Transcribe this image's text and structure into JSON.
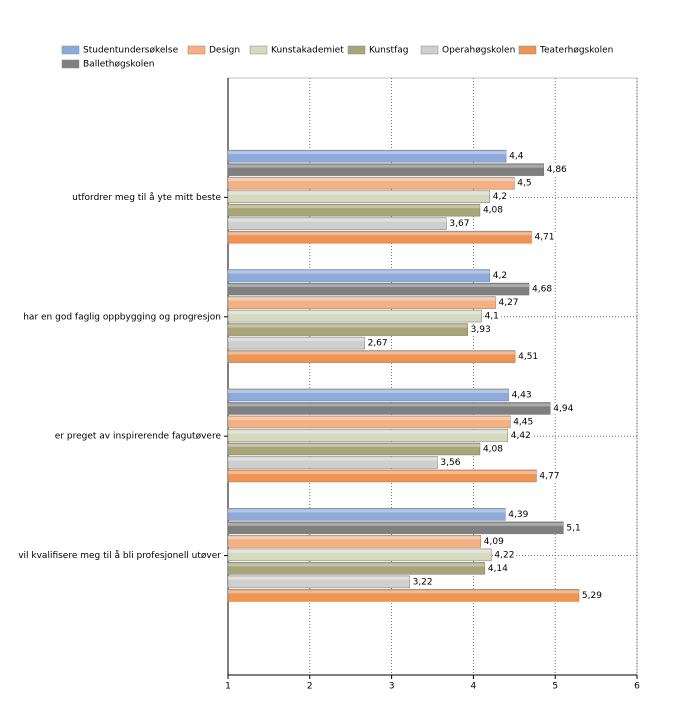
{
  "chart_data": {
    "type": "hbar",
    "categories": [
      "utfordrer meg til å yte mitt beste",
      "har en god faglig oppbygging og progresjon",
      "er preget av inspirerende fagutøvere",
      "vil kvalifisere meg til å bli profesjonell utøver"
    ],
    "series": [
      {
        "name": "Studentundersøkelse",
        "color": "#8eaadb",
        "values": [
          4.4,
          4.2,
          4.43,
          4.39
        ],
        "value_labels": [
          "4,4",
          "4,2",
          "4,43",
          "4,39"
        ]
      },
      {
        "name": "Ballethøgskolen",
        "color": "#7f7f7f",
        "values": [
          4.86,
          4.68,
          4.94,
          5.1
        ],
        "value_labels": [
          "4,86",
          "4,68",
          "4,94",
          "5,1"
        ]
      },
      {
        "name": "Design",
        "color": "#f4b183",
        "values": [
          4.5,
          4.27,
          4.45,
          4.09
        ],
        "value_labels": [
          "4,5",
          "4,27",
          "4,45",
          "4,09"
        ]
      },
      {
        "name": "Kunstakademiet",
        "color": "#d5d9c0",
        "values": [
          4.2,
          4.1,
          4.42,
          4.22
        ],
        "value_labels": [
          "4,2",
          "4,1",
          "4,42",
          "4,22"
        ]
      },
      {
        "name": "Kunstfag",
        "color": "#a8a578",
        "values": [
          4.08,
          3.93,
          4.08,
          4.14
        ],
        "value_labels": [
          "4,08",
          "3,93",
          "4,08",
          "4,14"
        ]
      },
      {
        "name": "Operahøgskolen",
        "color": "#cfcfcf",
        "values": [
          3.67,
          2.67,
          3.56,
          3.22
        ],
        "value_labels": [
          "3,67",
          "2,67",
          "3,56",
          "3,22"
        ]
      },
      {
        "name": "Teaterhøgskolen",
        "color": "#ee9556",
        "values": [
          4.71,
          4.51,
          4.77,
          5.29
        ],
        "value_labels": [
          "4,71",
          "4,51",
          "4,77",
          "5,29"
        ]
      }
    ],
    "xlim": [
      1,
      6
    ],
    "xticks": [
      1,
      2,
      3,
      4,
      5,
      6
    ],
    "grid": true
  }
}
